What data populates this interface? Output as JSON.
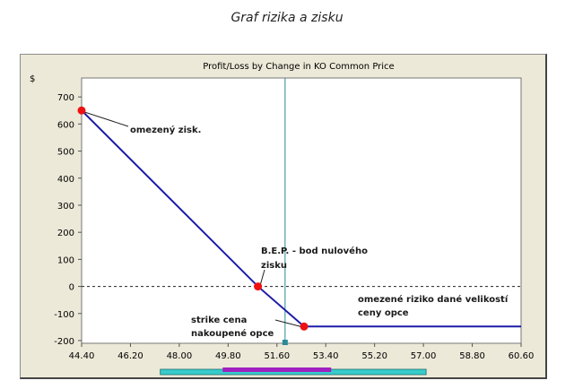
{
  "page": {
    "title": "Graf rizika a zisku"
  },
  "colors": {
    "line": "#1c1ca8",
    "point": "#ee1111",
    "cursor": "#2a8a96",
    "range_bar_outer": "#38cccc",
    "range_bar_inner": "#a020c0",
    "frame_bg": "#ece9d8",
    "plot_bg": "#ffffff"
  },
  "chart_data": {
    "type": "line",
    "title": "Profit/Loss by Change in KO Common Price",
    "ylabel": "$",
    "xlabel": "",
    "xlim": [
      44.4,
      60.6
    ],
    "ylim": [
      -210,
      770
    ],
    "x_ticks": [
      44.4,
      46.2,
      48.0,
      49.8,
      51.6,
      53.4,
      55.2,
      57.0,
      58.8,
      60.6
    ],
    "x_tick_labels": [
      "44.40",
      "46.20",
      "48.00",
      "49.80",
      "51.60",
      "53.40",
      "55.20",
      "57.00",
      "58.80",
      "60.60"
    ],
    "y_ticks": [
      -200,
      -100,
      0,
      100,
      200,
      300,
      400,
      500,
      600,
      700
    ],
    "y_tick_labels": [
      "-200",
      "-100",
      "0",
      "100",
      "200",
      "300",
      "400",
      "500",
      "600",
      "700"
    ],
    "grid": false,
    "zero_line": "dashed",
    "series": [
      {
        "x": [
          44.4,
          50.9,
          52.6,
          60.6
        ],
        "y": [
          650,
          0,
          -148,
          -148
        ]
      }
    ],
    "key_points": [
      {
        "id": "max-profit",
        "x": 44.4,
        "y": 650,
        "label": "omezený zisk."
      },
      {
        "id": "break-even",
        "x": 50.9,
        "y": 0,
        "label": "B.E.P. - bod nulového zisku"
      },
      {
        "id": "strike",
        "x": 52.6,
        "y": -148,
        "label": "strike cena nakoupené opce"
      }
    ],
    "region_annotations": [
      {
        "id": "limited-risk",
        "label": "omezené riziko dané velikostí ceny opce"
      }
    ],
    "current_price": 51.9,
    "range_bar": {
      "outer": [
        47.3,
        57.1
      ],
      "inner": [
        49.6,
        53.6
      ]
    }
  }
}
